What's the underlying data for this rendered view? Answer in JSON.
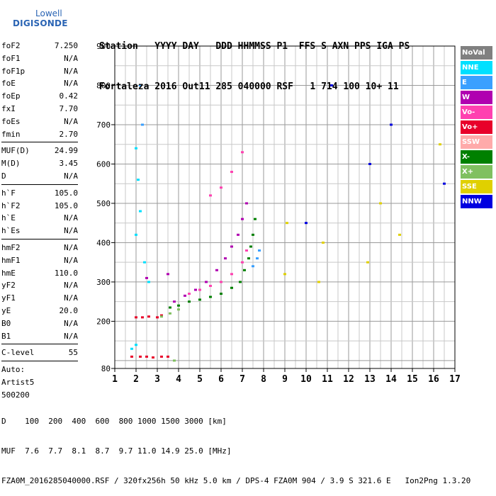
{
  "logo": {
    "brand": "Lowell",
    "product": "DIGISONDE"
  },
  "header": {
    "line1": "Station   YYYY DAY   DDD HHMMSS P1  FFS S AXN PPS IGA PS",
    "line2": "Fortaleza 2016 Out11 285 040000 RSF   1 714 100 10+ 11"
  },
  "params_group1": [
    {
      "label": "foF2",
      "value": "7.250"
    },
    {
      "label": "foF1",
      "value": "N/A"
    },
    {
      "label": "foF1p",
      "value": "N/A"
    },
    {
      "label": "foE",
      "value": "N/A"
    },
    {
      "label": "foEp",
      "value": "0.42"
    },
    {
      "label": "fxI",
      "value": "7.70"
    },
    {
      "label": "foEs",
      "value": "N/A"
    },
    {
      "label": "fmin",
      "value": "2.70"
    }
  ],
  "params_group2": [
    {
      "label": "MUF(D)",
      "value": "24.99"
    },
    {
      "label": "M(D)",
      "value": "3.45"
    },
    {
      "label": "D",
      "value": "N/A"
    }
  ],
  "params_group3": [
    {
      "label": "h`F",
      "value": "105.0"
    },
    {
      "label": "h`F2",
      "value": "105.0"
    },
    {
      "label": "h`E",
      "value": "N/A"
    },
    {
      "label": "h`Es",
      "value": "N/A"
    }
  ],
  "params_group4": [
    {
      "label": "hmF2",
      "value": "N/A"
    },
    {
      "label": "hmF1",
      "value": "N/A"
    },
    {
      "label": "hmE",
      "value": "110.0"
    },
    {
      "label": "yF2",
      "value": "N/A"
    },
    {
      "label": "yF1",
      "value": "N/A"
    },
    {
      "label": "yE",
      "value": "20.0"
    },
    {
      "label": "B0",
      "value": "N/A"
    },
    {
      "label": "B1",
      "value": "N/A"
    }
  ],
  "params_group5": [
    {
      "label": "C-level",
      "value": "55"
    }
  ],
  "autoscale": {
    "line1": "Auto:",
    "line2": "Artist5",
    "line3": "500200"
  },
  "legend": [
    {
      "label": "NoVal",
      "color": "#808080"
    },
    {
      "label": "NNE",
      "color": "#00e0ff"
    },
    {
      "label": "E",
      "color": "#3aa0ff"
    },
    {
      "label": "W",
      "color": "#b000b0"
    },
    {
      "label": "Vo-",
      "color": "#ff40b0"
    },
    {
      "label": "Vo+",
      "color": "#e8002a"
    },
    {
      "label": "SSW",
      "color": "#ffaaaa"
    },
    {
      "label": "X-",
      "color": "#008000"
    },
    {
      "label": "X+",
      "color": "#80c060"
    },
    {
      "label": "SSE",
      "color": "#e0d000"
    },
    {
      "label": "NNW",
      "color": "#0000e0"
    }
  ],
  "footer": {
    "line1": "D    100  200  400  600  800 1000 1500 3000 [km]",
    "line2": "MUF  7.6  7.7  8.1  8.7  9.7 11.0 14.9 25.0 [MHz]",
    "line3": "FZA0M_2016285040000.RSF / 320fx256h 50 kHz 5.0 km / DPS-4 FZA0M 904 / 3.9 S 321.6 E   Ion2Png 1.3.20"
  },
  "chart_data": {
    "type": "scatter",
    "x_ticks": [
      "1",
      "2",
      "3",
      "4",
      "5",
      "6",
      "7",
      "8",
      "9",
      "10",
      "11",
      "12",
      "13",
      "14",
      "15",
      "16",
      "17"
    ],
    "y_ticks": [
      "80",
      "200",
      "300",
      "400",
      "500",
      "600",
      "700",
      "800",
      "900"
    ],
    "xlim": [
      1,
      17
    ],
    "ylim": [
      80,
      900
    ],
    "grid": true,
    "legend_position": "right",
    "series": [
      {
        "color_key": "Vo+",
        "points": [
          [
            1.8,
            110
          ],
          [
            2.2,
            110
          ],
          [
            2.5,
            110
          ],
          [
            2.8,
            108
          ],
          [
            3.2,
            110
          ],
          [
            3.5,
            110
          ],
          [
            2.0,
            210
          ],
          [
            2.3,
            210
          ],
          [
            2.6,
            212
          ],
          [
            3.0,
            210
          ],
          [
            3.2,
            215
          ]
        ]
      },
      {
        "color_key": "X-",
        "points": [
          [
            3.6,
            235
          ],
          [
            4.0,
            240
          ],
          [
            4.5,
            250
          ],
          [
            5.0,
            255
          ],
          [
            5.5,
            262
          ],
          [
            6.0,
            270
          ],
          [
            6.5,
            285
          ],
          [
            6.9,
            300
          ],
          [
            7.1,
            330
          ],
          [
            7.3,
            360
          ],
          [
            7.4,
            390
          ],
          [
            7.5,
            420
          ],
          [
            7.6,
            460
          ]
        ]
      },
      {
        "color_key": "W",
        "points": [
          [
            3.8,
            250
          ],
          [
            4.3,
            265
          ],
          [
            4.8,
            280
          ],
          [
            5.3,
            300
          ],
          [
            5.8,
            330
          ],
          [
            6.2,
            360
          ],
          [
            6.5,
            390
          ],
          [
            6.8,
            420
          ],
          [
            7.0,
            460
          ],
          [
            7.2,
            500
          ],
          [
            2.5,
            310
          ],
          [
            3.5,
            320
          ]
        ]
      },
      {
        "color_key": "Vo-",
        "points": [
          [
            4.5,
            270
          ],
          [
            5.0,
            280
          ],
          [
            5.5,
            290
          ],
          [
            6.0,
            300
          ],
          [
            6.5,
            320
          ],
          [
            7.0,
            350
          ],
          [
            7.2,
            380
          ],
          [
            5.5,
            520
          ],
          [
            6.0,
            540
          ],
          [
            6.5,
            580
          ],
          [
            7.0,
            630
          ]
        ]
      },
      {
        "color_key": "NNE",
        "points": [
          [
            2.0,
            640
          ],
          [
            2.1,
            560
          ],
          [
            2.2,
            480
          ],
          [
            2.0,
            420
          ],
          [
            2.4,
            350
          ],
          [
            2.6,
            300
          ],
          [
            1.8,
            130
          ],
          [
            2.0,
            140
          ]
        ]
      },
      {
        "color_key": "E",
        "points": [
          [
            7.5,
            340
          ],
          [
            7.7,
            360
          ],
          [
            7.8,
            380
          ],
          [
            2.2,
            800
          ],
          [
            2.3,
            700
          ]
        ]
      },
      {
        "color_key": "SSE",
        "points": [
          [
            9.0,
            320
          ],
          [
            9.1,
            450
          ],
          [
            10.6,
            300
          ],
          [
            10.8,
            400
          ],
          [
            12.9,
            350
          ],
          [
            13.5,
            500
          ],
          [
            14.4,
            420
          ],
          [
            16.3,
            650
          ]
        ]
      },
      {
        "color_key": "X+",
        "points": [
          [
            3.2,
            212
          ],
          [
            3.6,
            220
          ],
          [
            4.0,
            230
          ],
          [
            3.8,
            100
          ]
        ]
      },
      {
        "color_key": "NNW",
        "points": [
          [
            10.0,
            450
          ],
          [
            11.2,
            800
          ],
          [
            13.0,
            600
          ],
          [
            14.0,
            700
          ],
          [
            16.5,
            550
          ]
        ]
      }
    ]
  }
}
